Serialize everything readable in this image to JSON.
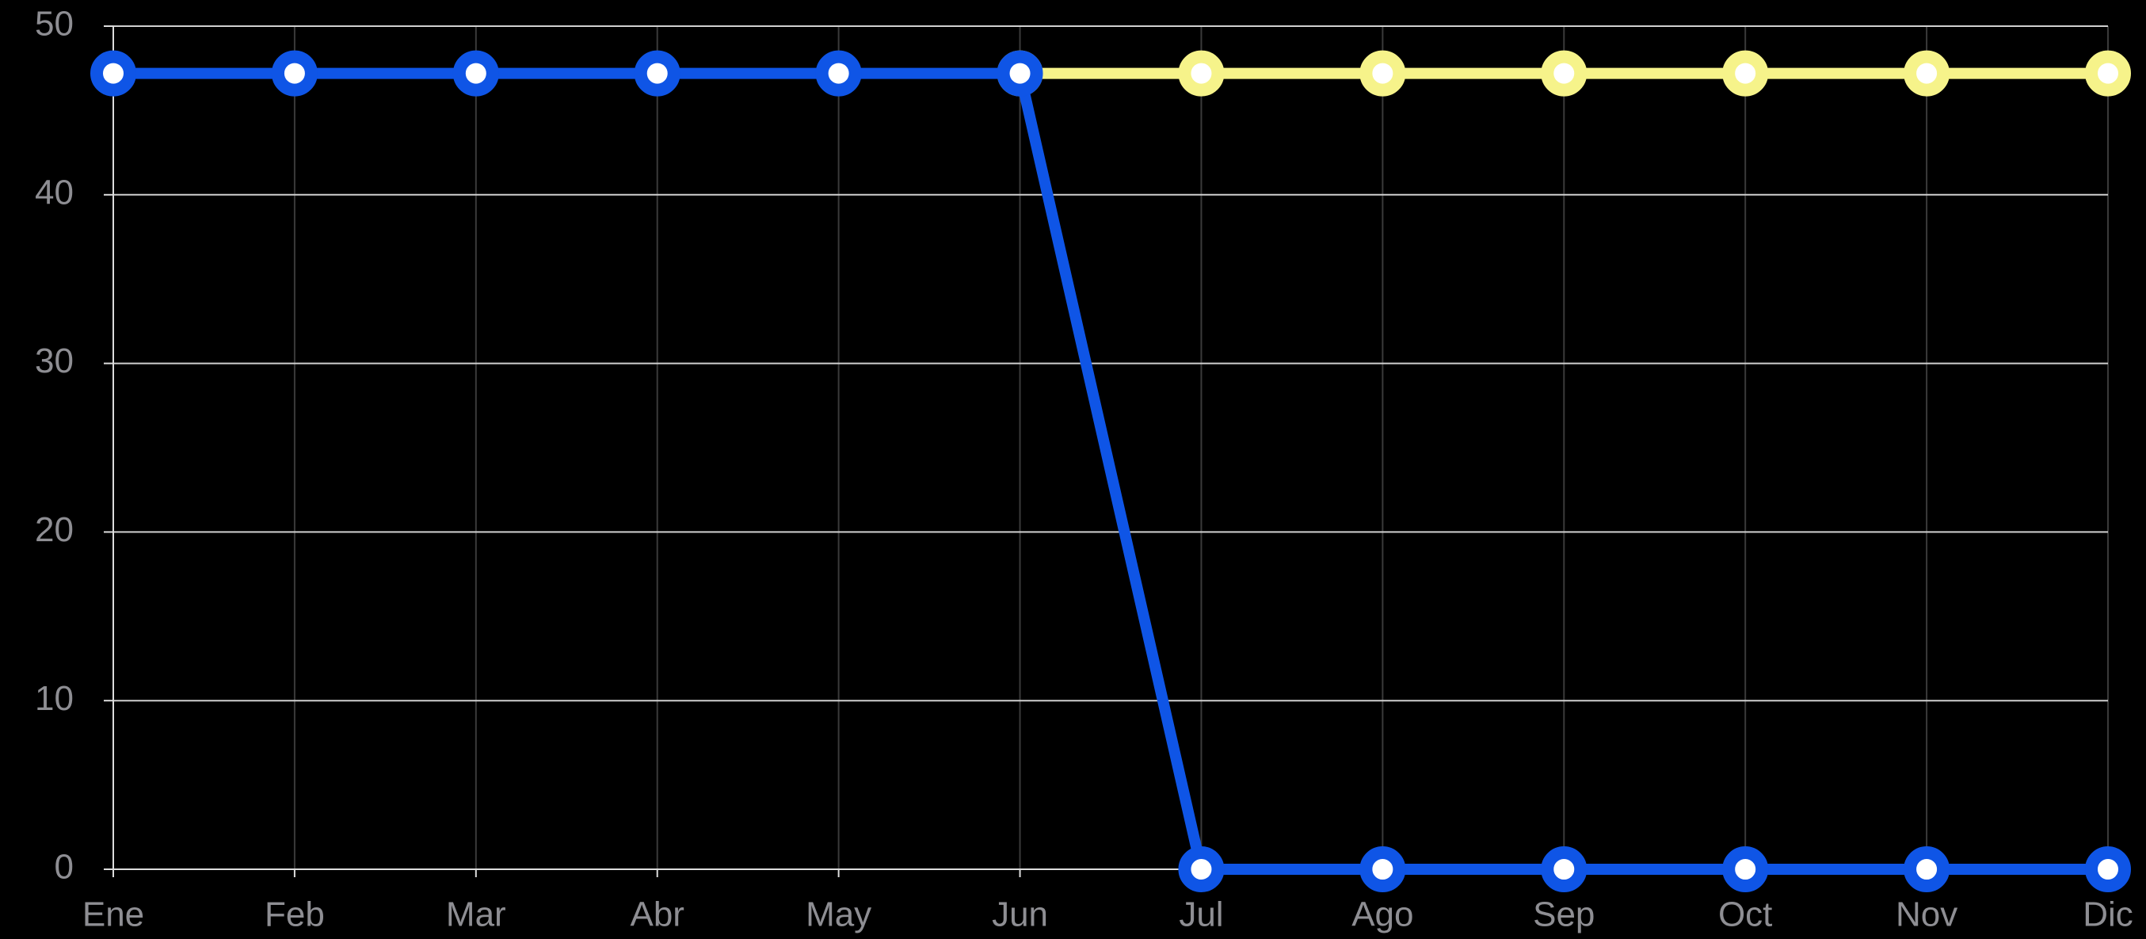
{
  "chart_data": {
    "type": "line",
    "categories": [
      "Ene",
      "Feb",
      "Mar",
      "Abr",
      "May",
      "Jun",
      "Jul",
      "Ago",
      "Sep",
      "Oct",
      "Nov",
      "Dic"
    ],
    "series": [
      {
        "color": "#f6f38a",
        "values": [
          null,
          null,
          null,
          null,
          null,
          47.2,
          47.2,
          47.2,
          47.2,
          47.2,
          47.2,
          47.2
        ]
      },
      {
        "color": "#0f55e6",
        "values": [
          47.2,
          47.2,
          47.2,
          47.2,
          47.2,
          47.2,
          0,
          0,
          0,
          0,
          0,
          0
        ]
      }
    ],
    "ylim": [
      0,
      50
    ],
    "yticks": [
      0,
      10,
      20,
      30,
      40,
      50
    ],
    "grid": true
  }
}
